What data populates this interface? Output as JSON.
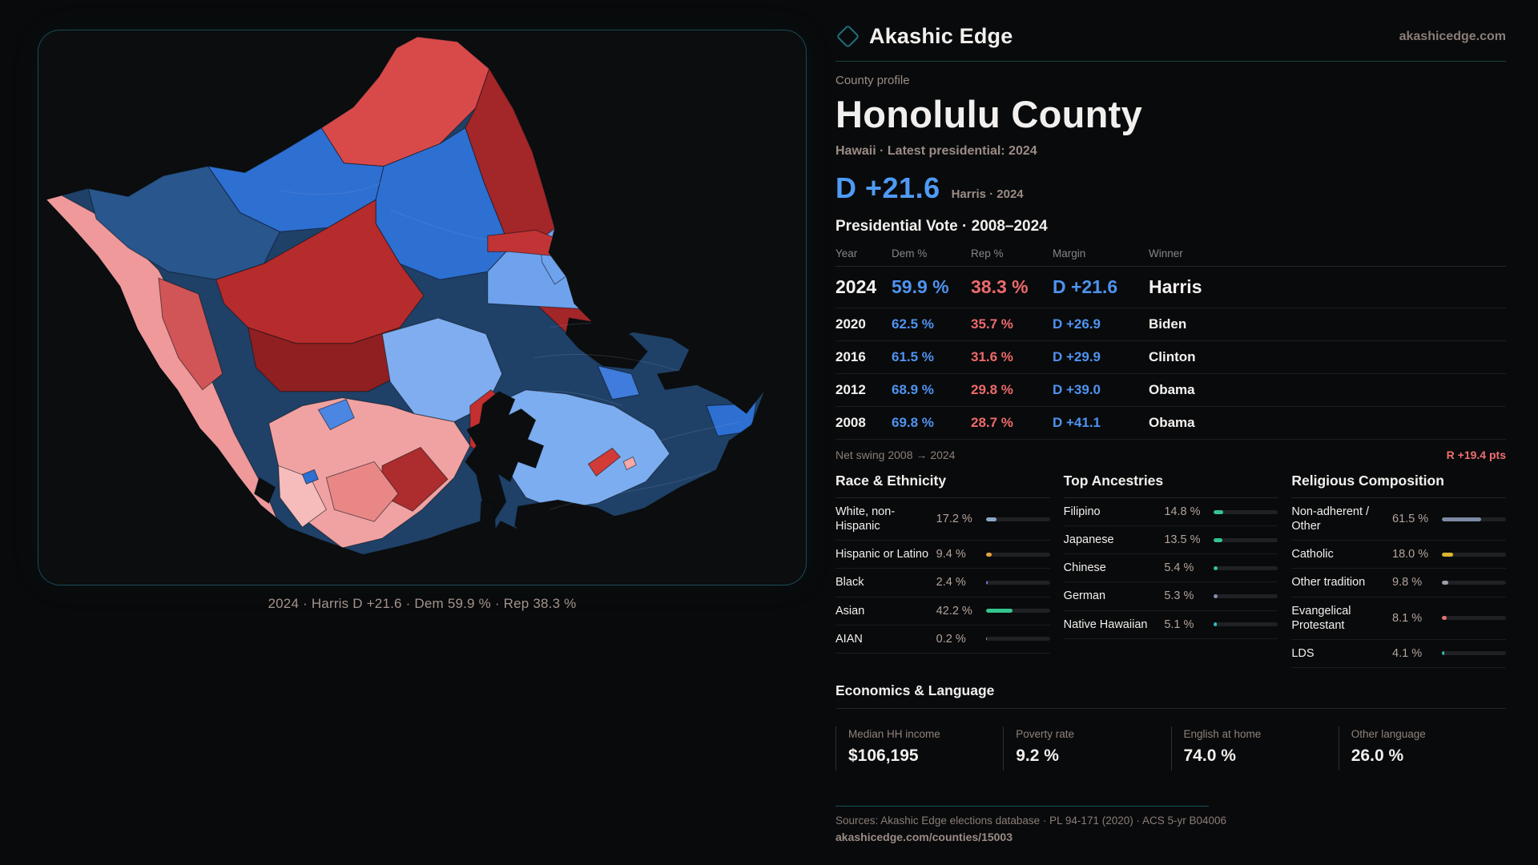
{
  "brand": {
    "name": "Akashic Edge",
    "domain": "akashicedge.com",
    "accent_teal": "#1d7082"
  },
  "map": {
    "caption": "2024 · Harris D +21.6 · Dem 59.9 % · Rep 38.3 %",
    "palette": {
      "dem_strong": "#1f4067",
      "dem_medium": "#2e6fd2",
      "dem_light": "#6fa2ec",
      "rep_strong": "#8f1f21",
      "rep_medium": "#c23335",
      "rep_light": "#ef999b",
      "water": "#0b0d0e"
    }
  },
  "profile": {
    "eyebrow": "County profile",
    "title": "Honolulu County",
    "subtitle": "Hawaii · Latest presidential: 2024",
    "headline_margin": "D +21.6",
    "headline_context": "Harris · 2024",
    "dem_color": "#4f93f0",
    "rep_color": "#ee6a6c"
  },
  "vote_table": {
    "title": "Presidential Vote · 2008–2024",
    "columns": {
      "year": "Year",
      "dem": "Dem %",
      "rep": "Rep %",
      "margin": "Margin",
      "winner": "Winner"
    },
    "rows": [
      {
        "year": "2024",
        "dem": "59.9 %",
        "rep": "38.3 %",
        "margin": "D +21.6",
        "winner": "Harris"
      },
      {
        "year": "2020",
        "dem": "62.5 %",
        "rep": "35.7 %",
        "margin": "D +26.9",
        "winner": "Biden"
      },
      {
        "year": "2016",
        "dem": "61.5 %",
        "rep": "31.6 %",
        "margin": "D +29.9",
        "winner": "Clinton"
      },
      {
        "year": "2012",
        "dem": "68.9 %",
        "rep": "29.8 %",
        "margin": "D +39.0",
        "winner": "Obama"
      },
      {
        "year": "2008",
        "dem": "69.8 %",
        "rep": "28.7 %",
        "margin": "D +41.1",
        "winner": "Obama"
      }
    ],
    "net_swing_label": "Net swing 2008 → 2024",
    "net_swing_value": "R +19.4 pts"
  },
  "race": {
    "title": "Race & Ethnicity",
    "rows": [
      {
        "label": "White, non-Hispanic",
        "value": "17.2 %",
        "pct": 17.2,
        "color": "#8ea6c6"
      },
      {
        "label": "Hispanic or Latino",
        "value": "9.4 %",
        "pct": 9.4,
        "color": "#e2a33c"
      },
      {
        "label": "Black",
        "value": "2.4 %",
        "pct": 2.4,
        "color": "#8b6fd6"
      },
      {
        "label": "Asian",
        "value": "42.2 %",
        "pct": 42.2,
        "color": "#35c48f"
      },
      {
        "label": "AIAN",
        "value": "0.2 %",
        "pct": 0.2,
        "color": "#9aa0ad"
      }
    ]
  },
  "ancestries": {
    "title": "Top Ancestries",
    "rows": [
      {
        "label": "Filipino",
        "value": "14.8 %",
        "pct": 14.8,
        "color": "#35c48f"
      },
      {
        "label": "Japanese",
        "value": "13.5 %",
        "pct": 13.5,
        "color": "#35c48f"
      },
      {
        "label": "Chinese",
        "value": "5.4 %",
        "pct": 5.4,
        "color": "#35c48f"
      },
      {
        "label": "German",
        "value": "5.3 %",
        "pct": 5.3,
        "color": "#8193ad"
      },
      {
        "label": "Native Hawaiian",
        "value": "5.1 %",
        "pct": 5.1,
        "color": "#35b8c4"
      }
    ]
  },
  "religion": {
    "title": "Religious Composition",
    "rows": [
      {
        "label": "Non-adherent / Other",
        "value": "61.5 %",
        "pct": 61.5,
        "color": "#7c8ba3"
      },
      {
        "label": "Catholic",
        "value": "18.0 %",
        "pct": 18.0,
        "color": "#dcb435"
      },
      {
        "label": "Other tradition",
        "value": "9.8 %",
        "pct": 9.8,
        "color": "#9aa0ad"
      },
      {
        "label": "Evangelical Protestant",
        "value": "8.1 %",
        "pct": 8.1,
        "color": "#e57373"
      },
      {
        "label": "LDS",
        "value": "4.1 %",
        "pct": 4.1,
        "color": "#2fbcb0"
      }
    ]
  },
  "econ": {
    "title": "Economics & Language",
    "stats": [
      {
        "label": "Median HH income",
        "value": "$106,195"
      },
      {
        "label": "Poverty rate",
        "value": "9.2 %"
      },
      {
        "label": "English at home",
        "value": "74.0 %"
      },
      {
        "label": "Other language",
        "value": "26.0 %"
      }
    ]
  },
  "footer": {
    "sources": "Sources: Akashic Edge elections database · PL 94-171 (2020) · ACS 5-yr B04006",
    "url": "akashicedge.com/counties/15003"
  }
}
